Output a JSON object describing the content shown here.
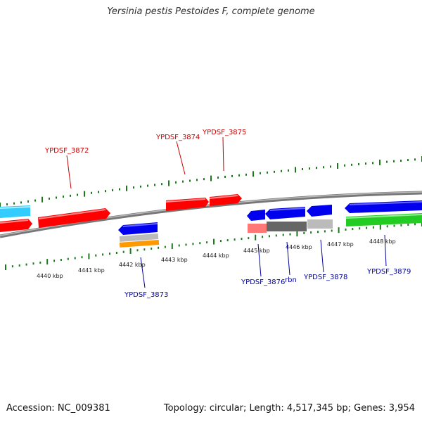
{
  "title": "Yersinia pestis Pestoides F, complete genome",
  "footer": {
    "accession": "Accession: NC_009381",
    "summary": "Topology: circular; Length: 4,517,345 bp; Genes: 3,954"
  },
  "colors": {
    "forward_label": "#cc0000",
    "reverse_label": "#000099",
    "tick": "#1a7a1a",
    "backbone": "#888888"
  },
  "kbp_labels": [
    "4440 kbp",
    "4441 kbp",
    "4442 kbp",
    "4443 kbp",
    "4444 kbp",
    "4445 kbp",
    "4446 kbp",
    "4447 kbp",
    "4448 kbp"
  ],
  "genes": [
    {
      "name": "",
      "color": "#33ccff",
      "icon": "cyan-block"
    },
    {
      "name": "",
      "color": "#ff0000",
      "icon": "red-arrow"
    },
    {
      "name": "YPDSF_3872",
      "color": "#ff0000",
      "icon": "red-arrow"
    },
    {
      "name": "YPDSF_3873",
      "color": "#0000ee",
      "icon": "blue-arrow"
    },
    {
      "name": "",
      "color": "#bbbbbb",
      "icon": "gray-bar"
    },
    {
      "name": "",
      "color": "#ff9900",
      "icon": "orange-bar"
    },
    {
      "name": "YPDSF_3874",
      "color": "#ff0000",
      "icon": "red-arrow"
    },
    {
      "name": "YPDSF_3875",
      "color": "#ff0000",
      "icon": "red-arrow"
    },
    {
      "name": "YPDSF_3876",
      "color": "#0000ee",
      "icon": "blue-arrow"
    },
    {
      "name": "",
      "color": "#ff7777",
      "icon": "pink-bar"
    },
    {
      "name": "rbn",
      "color": "#0000ee",
      "icon": "blue-arrow"
    },
    {
      "name": "",
      "color": "#666666",
      "icon": "dark-gray-bar"
    },
    {
      "name": "YPDSF_3878",
      "color": "#0000ee",
      "icon": "blue-arrow"
    },
    {
      "name": "",
      "color": "#bbbbbb",
      "icon": "gray-bar"
    },
    {
      "name": "YPDSF_3879",
      "color": "#0000ee",
      "icon": "blue-arrow"
    },
    {
      "name": "",
      "color": "#22cc22",
      "icon": "green-bar"
    }
  ]
}
